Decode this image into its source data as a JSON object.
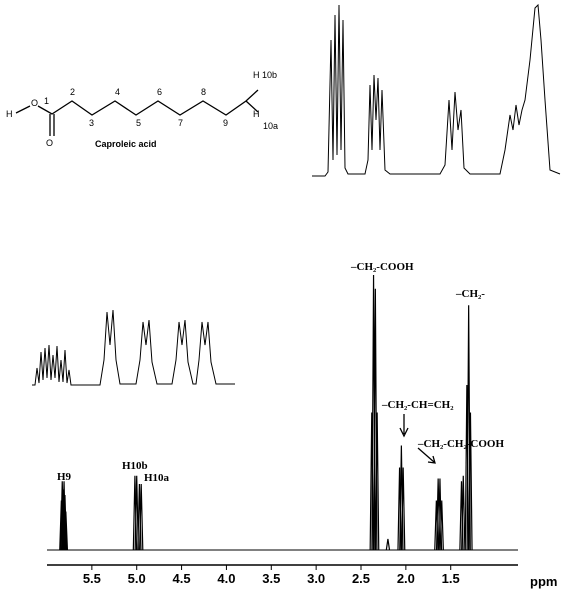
{
  "chart_data": {
    "type": "spectrum",
    "x_label": "ppm",
    "xlim": [
      6.0,
      0.75
    ],
    "xticks": [
      5.5,
      {
        "value": 5,
        "label": "5.0"
      },
      4.5,
      {
        "value": 4,
        "label": "4.0"
      },
      3.5,
      {
        "value": 3,
        "label": "3.0"
      },
      2.5,
      {
        "value": 2,
        "label": "2.0"
      },
      1.5
    ],
    "ylim": [
      0,
      100
    ],
    "color": "#000000",
    "peaks": {
      "x": [
        5.84,
        5.83,
        5.82,
        5.81,
        5.8,
        5.79,
        5.02,
        5.0,
        4.97,
        4.95,
        2.38,
        2.36,
        2.34,
        2.32,
        2.2,
        2.07,
        2.05,
        2.03,
        1.66,
        1.64,
        1.62,
        1.6,
        1.38,
        1.36,
        1.32,
        1.3,
        1.28
      ],
      "values": [
        18,
        25,
        22,
        25,
        20,
        14,
        27,
        27,
        24,
        24,
        50,
        100,
        95,
        50,
        4,
        30,
        38,
        30,
        18,
        26,
        26,
        18,
        25,
        27,
        60,
        89,
        50
      ]
    },
    "annotations": [
      "H9",
      "H10b",
      "H10a",
      "–CH₂-COOH",
      "–CH₂-CH=CH₂",
      "–CH₂-CH₂-COOH",
      "–CH₂-"
    ]
  },
  "molecule": {
    "name": "Caproleic acid",
    "atoms": [
      "H",
      "O",
      "1",
      "2",
      "3",
      "4",
      "5",
      "6",
      "7",
      "8",
      "9",
      "H",
      "10b",
      "H",
      "10a"
    ]
  }
}
